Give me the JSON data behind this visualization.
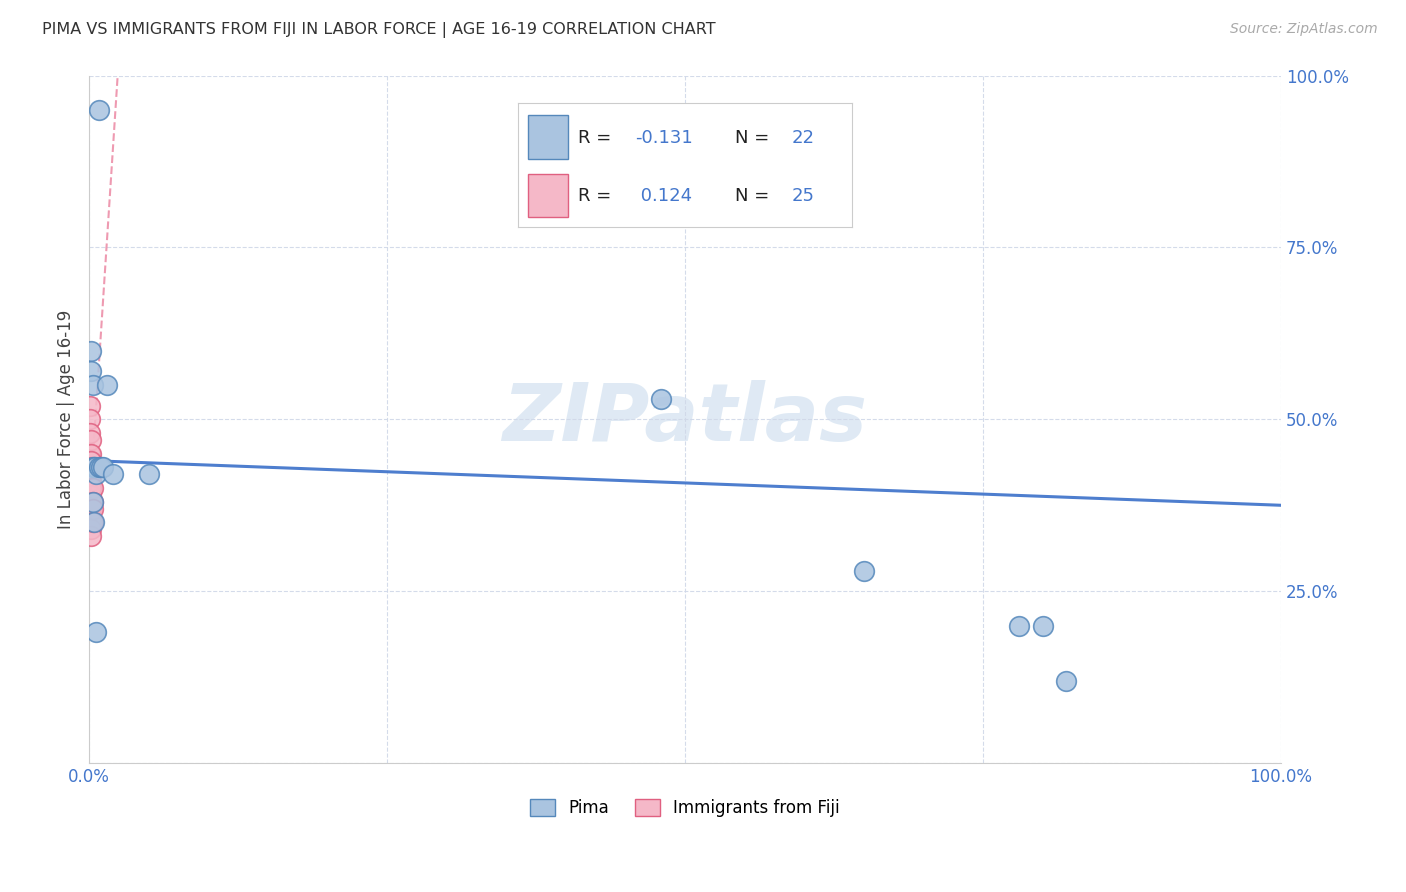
{
  "title": "PIMA VS IMMIGRANTS FROM FIJI IN LABOR FORCE | AGE 16-19 CORRELATION CHART",
  "source": "Source: ZipAtlas.com",
  "ylabel": "In Labor Force | Age 16-19",
  "xlim": [
    0.0,
    1.0
  ],
  "ylim": [
    0.0,
    1.0
  ],
  "background_color": "#ffffff",
  "grid_color": "#d0d8e8",
  "pima_color": "#aac4e0",
  "fiji_color": "#f5b8c8",
  "pima_edge_color": "#5588bb",
  "fiji_edge_color": "#e06080",
  "pima_r": -0.131,
  "pima_n": 22,
  "fiji_r": 0.124,
  "fiji_n": 25,
  "legend_label_pima": "Pima",
  "legend_label_fiji": "Immigrants from Fiji",
  "tick_label_color": "#4477cc",
  "watermark": "ZIPatlas",
  "pima_scatter_x": [
    0.008,
    0.002,
    0.002,
    0.003,
    0.003,
    0.004,
    0.005,
    0.006,
    0.008,
    0.01,
    0.012,
    0.015,
    0.02,
    0.48,
    0.65,
    0.78,
    0.8,
    0.82,
    0.003,
    0.004,
    0.006,
    0.05
  ],
  "pima_scatter_y": [
    0.95,
    0.6,
    0.57,
    0.55,
    0.43,
    0.43,
    0.43,
    0.42,
    0.43,
    0.43,
    0.43,
    0.55,
    0.42,
    0.53,
    0.28,
    0.2,
    0.2,
    0.12,
    0.38,
    0.35,
    0.19,
    0.42
  ],
  "fiji_scatter_x": [
    0.001,
    0.001,
    0.001,
    0.001,
    0.001,
    0.002,
    0.002,
    0.002,
    0.002,
    0.002,
    0.002,
    0.002,
    0.002,
    0.002,
    0.002,
    0.002,
    0.002,
    0.002,
    0.002,
    0.002,
    0.002,
    0.003,
    0.003,
    0.003,
    0.003
  ],
  "fiji_scatter_y": [
    0.52,
    0.5,
    0.48,
    0.45,
    0.44,
    0.47,
    0.45,
    0.44,
    0.43,
    0.42,
    0.41,
    0.4,
    0.39,
    0.38,
    0.37,
    0.36,
    0.35,
    0.34,
    0.33,
    0.4,
    0.38,
    0.4,
    0.38,
    0.37,
    0.35
  ],
  "pima_trend_x": [
    0.0,
    1.0
  ],
  "pima_trend_y": [
    0.44,
    0.375
  ],
  "fiji_trend_x": [
    0.0,
    0.006
  ],
  "fiji_trend_y": [
    0.36,
    0.52
  ]
}
